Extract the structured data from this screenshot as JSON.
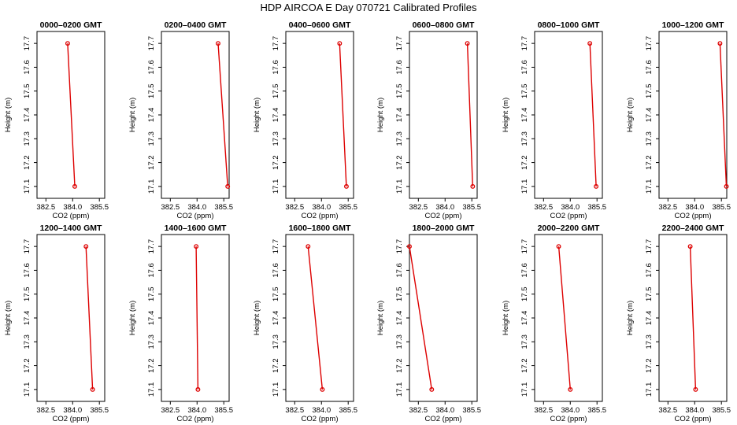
{
  "figure_title": "HDP AIRCOA E  Day 070721  Calibrated Profiles",
  "colors": {
    "series": "#dd0000",
    "axis": "#000000",
    "background": "#ffffff"
  },
  "chart_data": [
    {
      "type": "line",
      "title": "0000–0200 GMT",
      "xlabel": "CO2 (ppm)",
      "ylabel": "Height (m)",
      "xlim": [
        382.0,
        385.8
      ],
      "ylim": [
        17.05,
        17.75
      ],
      "xticks": [
        "382.5",
        "384.0",
        "385.5"
      ],
      "yticks": [
        "17.1",
        "17.2",
        "17.3",
        "17.4",
        "17.5",
        "17.6",
        "17.7"
      ],
      "grid": false,
      "series": [
        {
          "x": [
            383.72,
            384.12
          ],
          "y": [
            17.7,
            17.1
          ]
        }
      ]
    },
    {
      "type": "line",
      "title": "0200–0400 GMT",
      "xlabel": "CO2 (ppm)",
      "ylabel": "Height (m)",
      "xlim": [
        382.0,
        385.8
      ],
      "ylim": [
        17.05,
        17.75
      ],
      "xticks": [
        "382.5",
        "384.0",
        "385.5"
      ],
      "yticks": [
        "17.1",
        "17.2",
        "17.3",
        "17.4",
        "17.5",
        "17.6",
        "17.7"
      ],
      "grid": false,
      "series": [
        {
          "x": [
            385.18,
            385.72
          ],
          "y": [
            17.7,
            17.1
          ]
        }
      ]
    },
    {
      "type": "line",
      "title": "0400–0600 GMT",
      "xlabel": "CO2 (ppm)",
      "ylabel": "Height (m)",
      "xlim": [
        382.0,
        385.8
      ],
      "ylim": [
        17.05,
        17.75
      ],
      "xticks": [
        "382.5",
        "384.0",
        "385.5"
      ],
      "yticks": [
        "17.1",
        "17.2",
        "17.3",
        "17.4",
        "17.5",
        "17.6",
        "17.7"
      ],
      "grid": false,
      "series": [
        {
          "x": [
            385.02,
            385.4
          ],
          "y": [
            17.7,
            17.1
          ]
        }
      ]
    },
    {
      "type": "line",
      "title": "0600–0800 GMT",
      "xlabel": "CO2 (ppm)",
      "ylabel": "Height (m)",
      "xlim": [
        382.0,
        385.8
      ],
      "ylim": [
        17.05,
        17.75
      ],
      "xticks": [
        "382.5",
        "384.0",
        "385.5"
      ],
      "yticks": [
        "17.1",
        "17.2",
        "17.3",
        "17.4",
        "17.5",
        "17.6",
        "17.7"
      ],
      "grid": false,
      "series": [
        {
          "x": [
            385.25,
            385.55
          ],
          "y": [
            17.7,
            17.1
          ]
        }
      ]
    },
    {
      "type": "line",
      "title": "0800–1000 GMT",
      "xlabel": "CO2 (ppm)",
      "ylabel": "Height (m)",
      "xlim": [
        382.0,
        385.8
      ],
      "ylim": [
        17.05,
        17.75
      ],
      "xticks": [
        "382.5",
        "384.0",
        "385.5"
      ],
      "yticks": [
        "17.1",
        "17.2",
        "17.3",
        "17.4",
        "17.5",
        "17.6",
        "17.7"
      ],
      "grid": false,
      "series": [
        {
          "x": [
            385.1,
            385.45
          ],
          "y": [
            17.7,
            17.1
          ]
        }
      ]
    },
    {
      "type": "line",
      "title": "1000–1200 GMT",
      "xlabel": "CO2 (ppm)",
      "ylabel": "Height (m)",
      "xlim": [
        382.0,
        385.8
      ],
      "ylim": [
        17.05,
        17.75
      ],
      "xticks": [
        "382.5",
        "384.0",
        "385.5"
      ],
      "yticks": [
        "17.1",
        "17.2",
        "17.3",
        "17.4",
        "17.5",
        "17.6",
        "17.7"
      ],
      "grid": false,
      "series": [
        {
          "x": [
            385.42,
            385.78
          ],
          "y": [
            17.7,
            17.1
          ]
        }
      ]
    },
    {
      "type": "line",
      "title": "1200–1400 GMT",
      "xlabel": "CO2 (ppm)",
      "ylabel": "Height (m)",
      "xlim": [
        382.0,
        385.8
      ],
      "ylim": [
        17.05,
        17.75
      ],
      "xticks": [
        "382.5",
        "384.0",
        "385.5"
      ],
      "yticks": [
        "17.1",
        "17.2",
        "17.3",
        "17.4",
        "17.5",
        "17.6",
        "17.7"
      ],
      "grid": false,
      "series": [
        {
          "x": [
            384.75,
            385.12
          ],
          "y": [
            17.7,
            17.1
          ]
        }
      ]
    },
    {
      "type": "line",
      "title": "1400–1600 GMT",
      "xlabel": "CO2 (ppm)",
      "ylabel": "Height (m)",
      "xlim": [
        382.0,
        385.8
      ],
      "ylim": [
        17.05,
        17.75
      ],
      "xticks": [
        "382.5",
        "384.0",
        "385.5"
      ],
      "yticks": [
        "17.1",
        "17.2",
        "17.3",
        "17.4",
        "17.5",
        "17.6",
        "17.7"
      ],
      "grid": false,
      "series": [
        {
          "x": [
            383.95,
            384.05
          ],
          "y": [
            17.7,
            17.1
          ]
        }
      ]
    },
    {
      "type": "line",
      "title": "1600–1800 GMT",
      "xlabel": "CO2 (ppm)",
      "ylabel": "Height (m)",
      "xlim": [
        382.0,
        385.8
      ],
      "ylim": [
        17.05,
        17.75
      ],
      "xticks": [
        "382.5",
        "384.0",
        "385.5"
      ],
      "yticks": [
        "17.1",
        "17.2",
        "17.3",
        "17.4",
        "17.5",
        "17.6",
        "17.7"
      ],
      "grid": false,
      "series": [
        {
          "x": [
            383.25,
            384.05
          ],
          "y": [
            17.7,
            17.1
          ]
        }
      ]
    },
    {
      "type": "line",
      "title": "1800–2000 GMT",
      "xlabel": "CO2 (ppm)",
      "ylabel": "Height (m)",
      "xlim": [
        382.0,
        385.8
      ],
      "ylim": [
        17.05,
        17.75
      ],
      "xticks": [
        "382.5",
        "384.0",
        "385.5"
      ],
      "yticks": [
        "17.1",
        "17.2",
        "17.3",
        "17.4",
        "17.5",
        "17.6",
        "17.7"
      ],
      "grid": false,
      "series": [
        {
          "x": [
            382.0,
            383.25
          ],
          "y": [
            17.7,
            17.1
          ]
        }
      ]
    },
    {
      "type": "line",
      "title": "2000–2200 GMT",
      "xlabel": "CO2 (ppm)",
      "ylabel": "Height (m)",
      "xlim": [
        382.0,
        385.8
      ],
      "ylim": [
        17.05,
        17.75
      ],
      "xticks": [
        "382.5",
        "384.0",
        "385.5"
      ],
      "yticks": [
        "17.1",
        "17.2",
        "17.3",
        "17.4",
        "17.5",
        "17.6",
        "17.7"
      ],
      "grid": false,
      "series": [
        {
          "x": [
            383.35,
            384.0
          ],
          "y": [
            17.7,
            17.1
          ]
        }
      ]
    },
    {
      "type": "line",
      "title": "2200–2400 GMT",
      "xlabel": "CO2 (ppm)",
      "ylabel": "Height (m)",
      "xlim": [
        382.0,
        385.8
      ],
      "ylim": [
        17.05,
        17.75
      ],
      "xticks": [
        "382.5",
        "384.0",
        "385.5"
      ],
      "yticks": [
        "17.1",
        "17.2",
        "17.3",
        "17.4",
        "17.5",
        "17.6",
        "17.7"
      ],
      "grid": false,
      "series": [
        {
          "x": [
            383.75,
            384.05
          ],
          "y": [
            17.7,
            17.1
          ]
        }
      ]
    }
  ]
}
